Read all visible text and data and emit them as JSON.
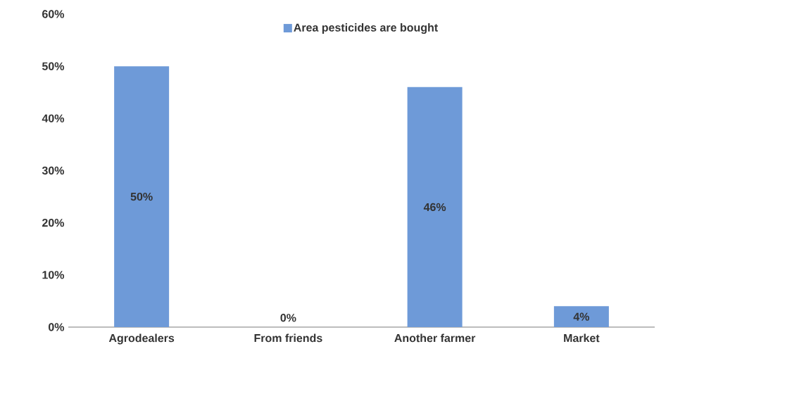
{
  "chart_data": {
    "type": "bar",
    "categories": [
      "Agrodealers",
      "From friends",
      "Another farmer",
      "Market"
    ],
    "series": [
      {
        "name": "Area pesticides are bought",
        "color": "#6e9ad8",
        "values": [
          50,
          0,
          46,
          4
        ],
        "value_labels": [
          "50%",
          "0%",
          "46%",
          "4%"
        ]
      }
    ],
    "ylim": [
      0,
      60
    ],
    "yticks": [
      {
        "value": 0,
        "label": "0%"
      },
      {
        "value": 10,
        "label": "10%"
      },
      {
        "value": 20,
        "label": "20%"
      },
      {
        "value": 30,
        "label": "30%"
      },
      {
        "value": 40,
        "label": "40%"
      },
      {
        "value": 50,
        "label": "50%"
      },
      {
        "value": 60,
        "label": "60%"
      }
    ],
    "legend": "top"
  }
}
